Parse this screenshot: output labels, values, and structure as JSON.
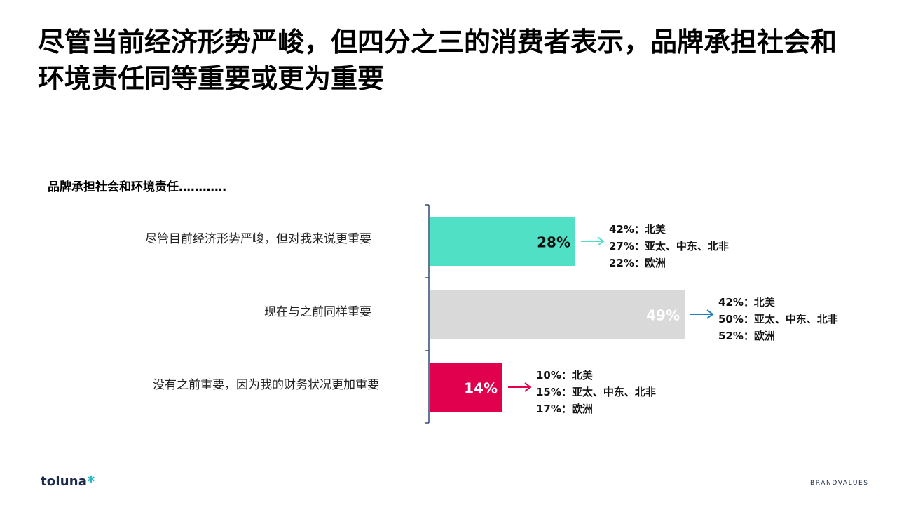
{
  "page": {
    "title": "尽管当前经济形势严峻，但四分之三的消费者表示，品牌承担社会和环境责任同等重要或更为重要",
    "logo_left_text": "toluna",
    "logo_right_text": "BRANDVALUES"
  },
  "chart_data": {
    "type": "bar",
    "orientation": "horizontal",
    "title": "品牌承担社会和环境责任…………",
    "categories": [
      "尽管目前经济形势严峻，但对我来说更重要",
      "现在与之前同样重要",
      "没有之前重要，因为我的财务状况更加重要"
    ],
    "values": [
      28,
      49,
      14
    ],
    "value_labels": [
      "28%",
      "49%",
      "14%"
    ],
    "bar_colors": [
      "#4fe0c6",
      "#d9d9d9",
      "#e0004d"
    ],
    "value_label_colors": [
      "#111111",
      "#ffffff",
      "#ffffff"
    ],
    "arrow_colors": [
      "#4fe0c6",
      "#1f7fc0",
      "#e0004d"
    ],
    "regional_breakdown": [
      [
        {
          "pct": "42%：",
          "region": "北美"
        },
        {
          "pct": "27%：",
          "region": "亚太、中东、北非"
        },
        {
          "pct": "22%：",
          "region": "欧洲"
        }
      ],
      [
        {
          "pct": "42%：",
          "region": "北美"
        },
        {
          "pct": "50%：",
          "region": "亚太、中东、北非"
        },
        {
          "pct": "52%：",
          "region": "欧洲"
        }
      ],
      [
        {
          "pct": "10%：",
          "region": "北美"
        },
        {
          "pct": "15%：",
          "region": "亚太、中东、北非"
        },
        {
          "pct": "17%：",
          "region": "欧洲"
        }
      ]
    ],
    "xlim": [
      0,
      100
    ],
    "grid": false,
    "legend": "none"
  }
}
